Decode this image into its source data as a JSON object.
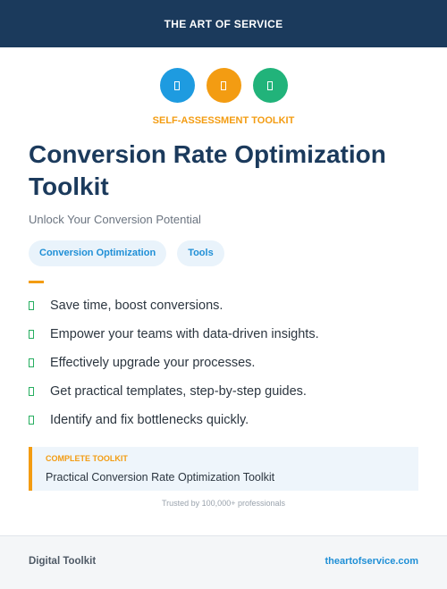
{
  "header": {
    "brand": "THE ART OF SERVICE",
    "background_color": "#1b3a5c"
  },
  "icons": [
    {
      "name": "toolkit-icon-blue",
      "color": "#1e9be0"
    },
    {
      "name": "toolkit-icon-orange",
      "color": "#f39c12"
    },
    {
      "name": "toolkit-icon-green",
      "color": "#21b37a"
    }
  ],
  "hero": {
    "kicker": "SELF-ASSESSMENT TOOLKIT",
    "title": "Conversion Rate Optimization Toolkit",
    "subtitle": "Unlock Your Conversion Potential"
  },
  "tags": [
    "Conversion Optimization",
    "Tools"
  ],
  "benefits": [
    "Save time, boost conversions.",
    "Empower your teams with data-driven insights.",
    "Effectively upgrade your processes.",
    "Get practical templates, step-by-step guides.",
    "Identify and fix bottlenecks quickly."
  ],
  "callout": {
    "label": "COMPLETE TOOLKIT",
    "text": "Practical Conversion Rate Optimization Toolkit"
  },
  "trust_line": "Trusted by 100,000+ professionals",
  "footer": {
    "left": "Digital Toolkit",
    "right": "theartofservice.com"
  },
  "colors": {
    "accent_orange": "#f39c12",
    "accent_blue": "#1f8fd6",
    "check_green": "#27ae60",
    "title_navy": "#1b3a5c"
  }
}
